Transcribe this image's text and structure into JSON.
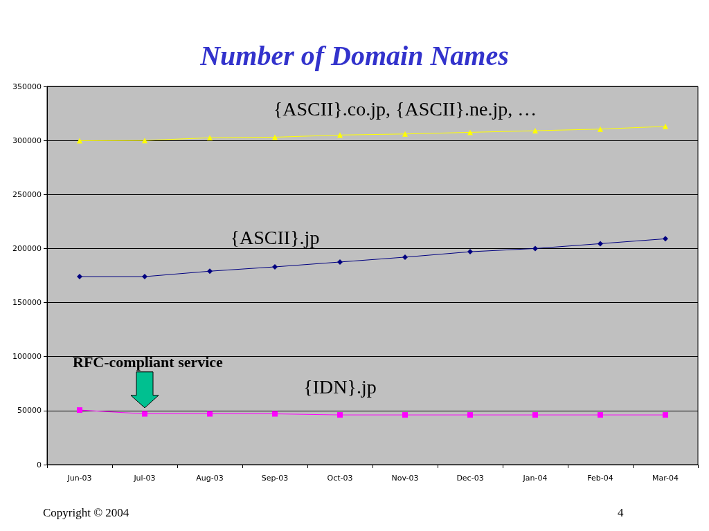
{
  "chart_data": {
    "type": "line",
    "title": "Number of Domain Names",
    "categories": [
      "Jun-03",
      "Jul-03",
      "Aug-03",
      "Sep-03",
      "Oct-03",
      "Nov-03",
      "Dec-03",
      "Jan-04",
      "Feb-04",
      "Mar-04"
    ],
    "series": [
      {
        "name": "{ASCII}.co.jp, {ASCII}.ne.jp, …",
        "color": "#ffff00",
        "marker": "triangle",
        "values": [
          299800,
          300000,
          302500,
          303000,
          305000,
          306000,
          307500,
          309000,
          310500,
          313000
        ]
      },
      {
        "name": "{ASCII}.jp",
        "color": "#000080",
        "marker": "diamond",
        "values": [
          174000,
          174000,
          179000,
          183000,
          187500,
          192000,
          197000,
          200000,
          204500,
          209000
        ]
      },
      {
        "name": "{IDN}.jp",
        "color": "#ff00ff",
        "marker": "square",
        "values": [
          50500,
          47000,
          47000,
          47000,
          46000,
          46000,
          46000,
          46000,
          46000,
          46000
        ]
      }
    ],
    "ylim": [
      0,
      350000
    ],
    "yticks": [
      0,
      50000,
      100000,
      150000,
      200000,
      250000,
      300000,
      350000
    ],
    "grid": "y",
    "legend": false,
    "annotations": [
      "RFC-compliant service",
      "Copyright © 2004",
      "4"
    ]
  }
}
